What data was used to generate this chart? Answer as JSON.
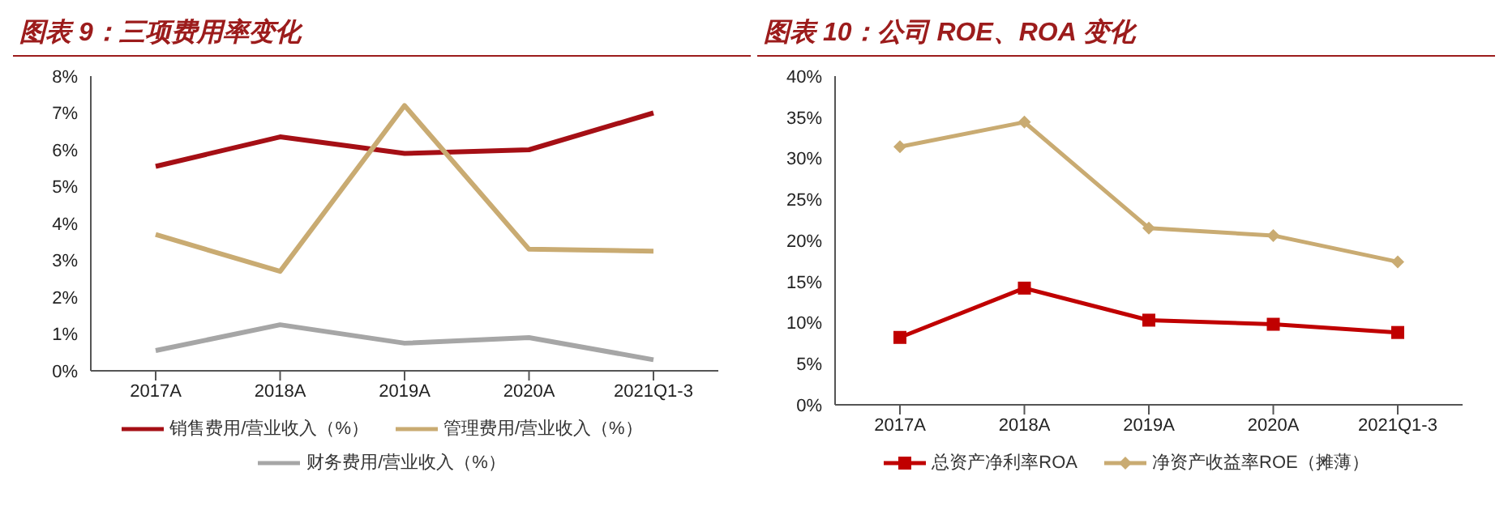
{
  "chart_data": [
    {
      "type": "line",
      "title": "图表 9：三项费用率变化",
      "categories": [
        "2017A",
        "2018A",
        "2019A",
        "2020A",
        "2021Q1-3"
      ],
      "series": [
        {
          "name": "销售费用/营业收入（%）",
          "color": "#a50f15",
          "values": [
            5.55,
            6.35,
            5.9,
            6.0,
            7.0
          ]
        },
        {
          "name": "管理费用/营业收入（%）",
          "color": "#c9ab72",
          "values": [
            3.7,
            2.7,
            7.2,
            3.3,
            3.25
          ]
        },
        {
          "name": "财务费用/营业收入（%）",
          "color": "#a6a6a6",
          "values": [
            0.55,
            1.25,
            0.75,
            0.9,
            0.3
          ]
        }
      ],
      "ylim": [
        0,
        8
      ],
      "yticks": [
        {
          "value": 0,
          "label": "0%"
        },
        {
          "value": 1,
          "label": "1%"
        },
        {
          "value": 2,
          "label": "2%"
        },
        {
          "value": 3,
          "label": "3%"
        },
        {
          "value": 4,
          "label": "4%"
        },
        {
          "value": 5,
          "label": "5%"
        },
        {
          "value": 6,
          "label": "6%"
        },
        {
          "value": 7,
          "label": "7%"
        },
        {
          "value": 8,
          "label": "8%"
        }
      ],
      "grid": false,
      "legend": "bottom",
      "marker": "none"
    },
    {
      "type": "line",
      "title": "图表 10：公司 ROE、ROA 变化",
      "categories": [
        "2017A",
        "2018A",
        "2019A",
        "2020A",
        "2021Q1-3"
      ],
      "series": [
        {
          "name": "总资产净利率ROA",
          "color": "#c00000",
          "values": [
            8.2,
            14.2,
            10.3,
            9.8,
            8.8
          ],
          "marker": "square"
        },
        {
          "name": "净资产收益率ROE（摊薄）",
          "color": "#c9ab72",
          "values": [
            31.4,
            34.4,
            21.5,
            20.6,
            17.4
          ],
          "marker": "diamond"
        }
      ],
      "ylim": [
        0,
        40
      ],
      "yticks": [
        {
          "value": 0,
          "label": "0%"
        },
        {
          "value": 5,
          "label": "5%"
        },
        {
          "value": 10,
          "label": "10%"
        },
        {
          "value": 15,
          "label": "15%"
        },
        {
          "value": 20,
          "label": "20%"
        },
        {
          "value": 25,
          "label": "25%"
        },
        {
          "value": 30,
          "label": "30%"
        },
        {
          "value": 35,
          "label": "35%"
        },
        {
          "value": 40,
          "label": "40%"
        }
      ],
      "grid": false,
      "legend": "bottom"
    }
  ]
}
